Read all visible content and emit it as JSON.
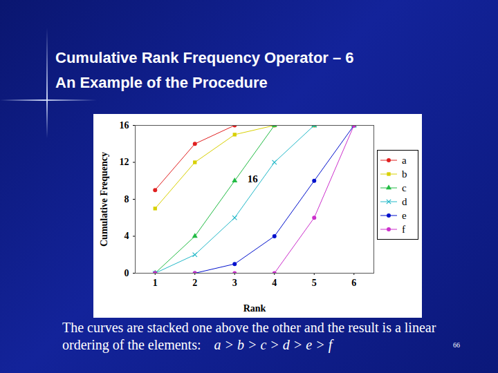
{
  "chart_data": {
    "type": "line",
    "title": "Cumulative Rank Frequency Operator – 6",
    "subtitle": "An Example of the Procedure",
    "x_label": "Rank",
    "y_label": "Cumulative Frequency",
    "x": [
      1,
      2,
      3,
      4,
      5,
      6
    ],
    "xlim": [
      0.5,
      6.5
    ],
    "xticks": [
      1,
      2,
      3,
      4,
      5,
      6
    ],
    "ylim": [
      0,
      16
    ],
    "yticks": [
      0,
      4,
      8,
      12,
      16
    ],
    "grid": false,
    "legend": "right",
    "series": [
      {
        "name": "a",
        "color": "#e02020",
        "marker": "circle",
        "values": [
          9,
          14,
          16,
          16,
          16,
          16
        ]
      },
      {
        "name": "b",
        "color": "#d8d000",
        "marker": "square",
        "values": [
          7,
          12,
          15,
          16,
          16,
          16
        ]
      },
      {
        "name": "c",
        "color": "#22bb44",
        "marker": "triangle",
        "values": [
          0,
          4,
          10,
          16,
          16,
          16
        ]
      },
      {
        "name": "d",
        "color": "#22b8c8",
        "marker": "times",
        "values": [
          0,
          2,
          6,
          12,
          16,
          16
        ]
      },
      {
        "name": "e",
        "color": "#0010cc",
        "marker": "circle",
        "values": [
          0,
          0,
          1,
          4,
          10,
          16
        ]
      },
      {
        "name": "f",
        "color": "#cc30cc",
        "marker": "circle",
        "values": [
          0,
          0,
          0,
          0,
          6,
          16
        ]
      }
    ],
    "annotations": [
      {
        "text": "16",
        "x": 3.45,
        "y": 10.2
      }
    ],
    "caption": "The curves are stacked one above the other and the result is a linear ordering of the elements:",
    "caption_ordering": "a > b > c > d > e > f",
    "page_number": "66"
  }
}
